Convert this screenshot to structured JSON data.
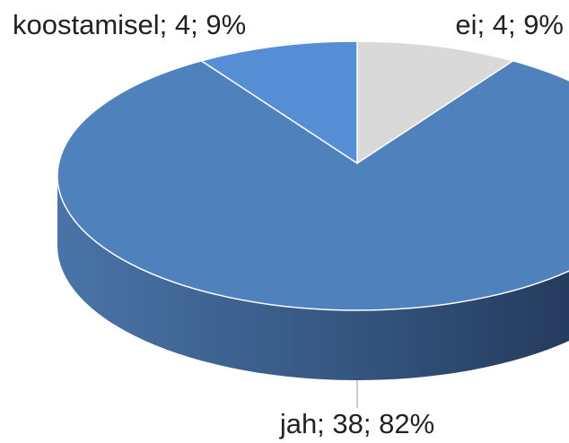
{
  "chart_data": {
    "type": "pie3d",
    "values": [
      4,
      38,
      4
    ],
    "value_labels": [
      "ei; 4; 9%",
      "jah; 38; 82%",
      "koostamisel; 4; 9%"
    ],
    "colors": [
      "#d9d9d9",
      "#4f81bd",
      "#558ed5"
    ]
  }
}
